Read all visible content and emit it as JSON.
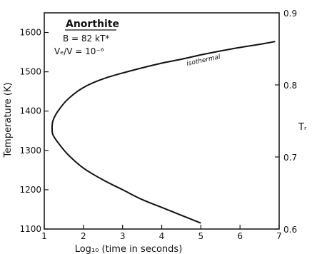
{
  "chart_data": {
    "type": "line",
    "xlabel": "Log₁₀ (time in seconds)",
    "ylabel": "Temperature (K)",
    "y2label": "Tᵣ",
    "xlim": [
      1,
      7
    ],
    "ylim": [
      1100,
      1650
    ],
    "y2lim": [
      0.6,
      0.9
    ],
    "x_ticks": [
      1,
      2,
      3,
      4,
      5,
      6,
      7
    ],
    "y_ticks": [
      1100,
      1200,
      1300,
      1400,
      1500,
      1600
    ],
    "y2_ticks": [
      0.6,
      0.7,
      0.8,
      0.9
    ],
    "grid": false,
    "annotations": {
      "title": "Anorthite",
      "line1": "B = 82 kT*",
      "line2": "Vₑ/V = 10⁻⁶"
    },
    "series": [
      {
        "name": "isothermal",
        "x": [
          5.0,
          4.5,
          4.0,
          3.5,
          3.0,
          2.5,
          2.0,
          1.6,
          1.35,
          1.22,
          1.2,
          1.22,
          1.35,
          1.6,
          2.0,
          2.5,
          3.0,
          3.5,
          4.0,
          4.5,
          5.0,
          5.5,
          6.0,
          6.5,
          6.9
        ],
        "y": [
          1115,
          1135,
          1155,
          1175,
          1200,
          1225,
          1255,
          1290,
          1320,
          1340,
          1355,
          1375,
          1400,
          1430,
          1460,
          1482,
          1497,
          1510,
          1522,
          1532,
          1543,
          1553,
          1562,
          1570,
          1577
        ]
      }
    ]
  }
}
